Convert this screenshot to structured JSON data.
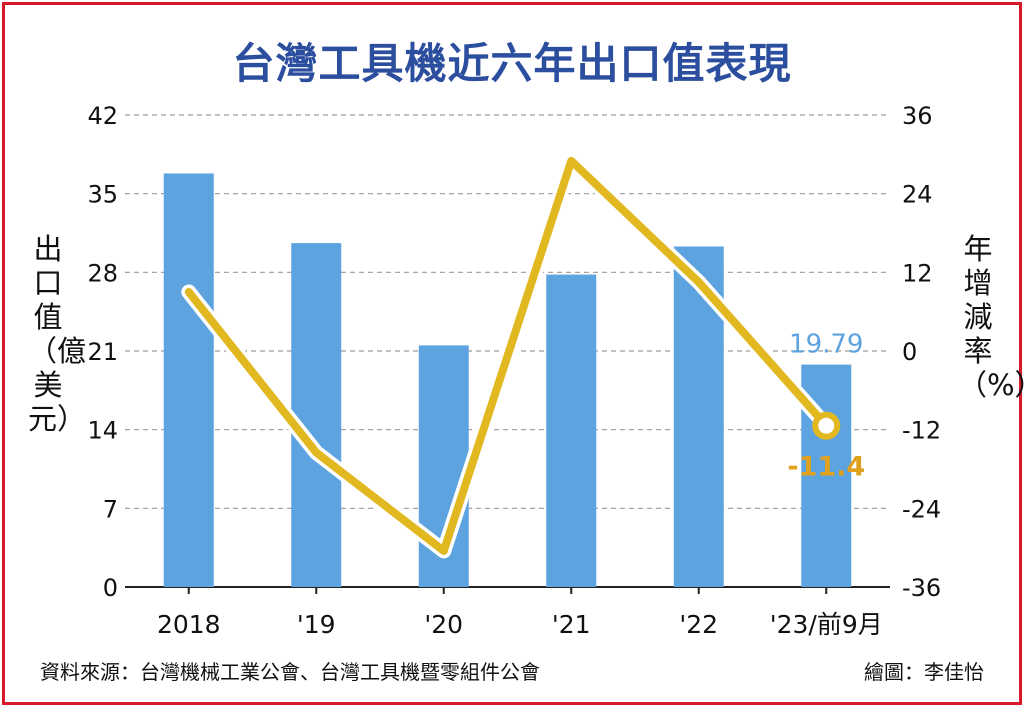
{
  "chart_data": {
    "type": "bar",
    "title": "台灣工具機近六年出口值表現",
    "categories": [
      "2018",
      "'19",
      "'20",
      "'21",
      "'22",
      "'23/前9月"
    ],
    "series": [
      {
        "values": [
          36.8,
          30.6,
          21.5,
          27.8,
          30.3,
          19.79
        ],
        "axis": "left",
        "color": "#5da3e0"
      },
      {
        "values": [
          9.0,
          -15.5,
          -30.5,
          29.0,
          10.5,
          -11.4
        ],
        "axis": "right",
        "color": "#e2b820"
      }
    ],
    "ylabel_left": "出口值（億美元）",
    "ylabel_right": "年增減率（%）",
    "ylim_left": [
      0,
      42
    ],
    "yticks_left": [
      "0",
      "7",
      "14",
      "21",
      "28",
      "35",
      "42"
    ],
    "ylim_right": [
      -36,
      36
    ],
    "yticks_right": [
      "-36",
      "-24",
      "-12",
      "0",
      "12",
      "24",
      "36"
    ],
    "annotations": [
      "19.79",
      "-11.4"
    ],
    "grid": true
  },
  "footer": {
    "source": "資料來源：台灣機械工業公會、台灣工具機暨零組件公會",
    "credit": "繪圖：李佳怡"
  },
  "colors": {
    "border": "#d7192a",
    "title": "#2c4e9e",
    "bar": "#5da3e0",
    "line": "#e2b820",
    "bar_label": "#5da3e0",
    "line_label": "#e0a21c"
  }
}
